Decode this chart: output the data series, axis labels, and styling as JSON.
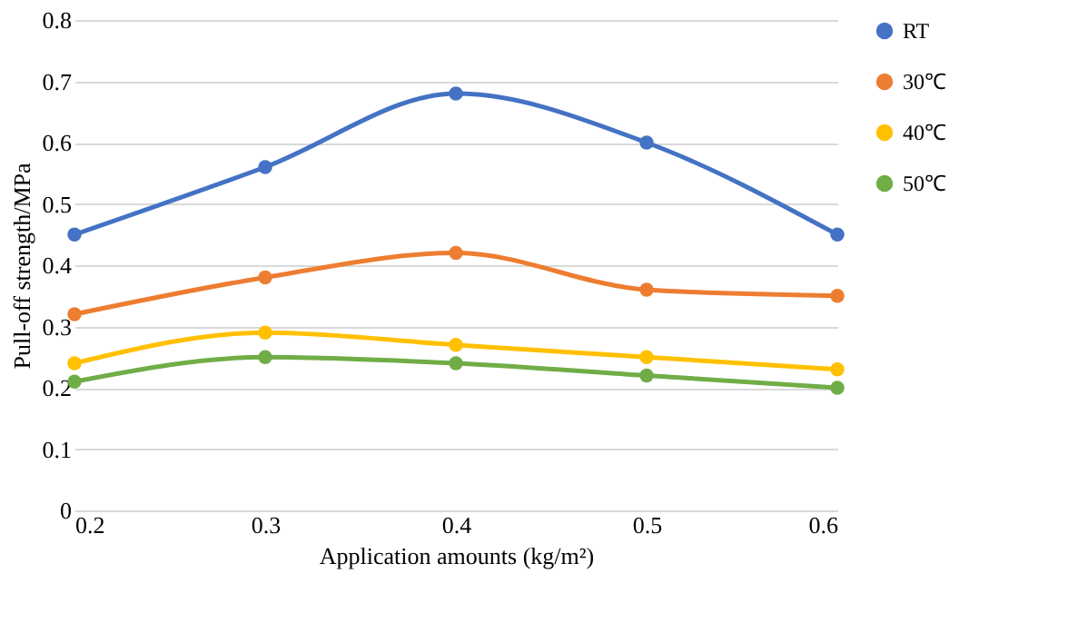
{
  "chart_data": {
    "type": "line",
    "xlabel": "Application amounts (kg/m²)",
    "ylabel": "Pull-off strength/MPa",
    "x": [
      0.2,
      0.3,
      0.4,
      0.5,
      0.6
    ],
    "series": [
      {
        "name": "RT",
        "color": "#4472c4",
        "values": [
          0.45,
          0.56,
          0.68,
          0.6,
          0.45
        ]
      },
      {
        "name": "30℃",
        "color": "#ed7d31",
        "values": [
          0.32,
          0.38,
          0.42,
          0.36,
          0.35
        ]
      },
      {
        "name": "40℃",
        "color": "#ffc000",
        "values": [
          0.24,
          0.29,
          0.27,
          0.25,
          0.23
        ]
      },
      {
        "name": "50℃",
        "color": "#70ad47",
        "values": [
          0.21,
          0.25,
          0.24,
          0.22,
          0.2
        ]
      }
    ],
    "xlim": [
      0.2,
      0.6
    ],
    "xticks": [
      0.2,
      0.3,
      0.4,
      0.5,
      0.6
    ],
    "ylim": [
      0,
      0.8
    ],
    "yticks": [
      0,
      0.1,
      0.2,
      0.3,
      0.4,
      0.5,
      0.6,
      0.7,
      0.8
    ],
    "grid": "y",
    "legend": "right",
    "marker": "circle",
    "line_style": "solid"
  }
}
